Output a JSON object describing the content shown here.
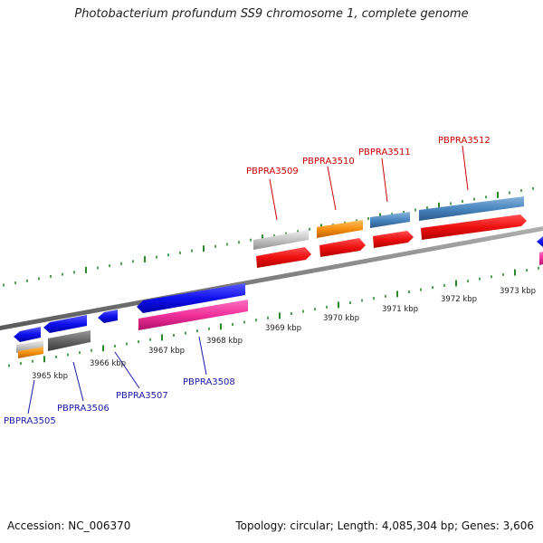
{
  "title": "Photobacterium profundum SS9 chromosome 1, complete genome",
  "footer": {
    "accession": "Accession: NC_006370",
    "summary": "Topology: circular; Length: 4,085,304 bp; Genes: 3,606"
  },
  "colors": {
    "backbone": "#8a8a8a",
    "ticks": "#2a8a2a",
    "label_top": "#cc0000",
    "label_bottom": "#1a1aaa"
  },
  "kbp_labels": [
    "3965 kbp",
    "3966 kbp",
    "3967 kbp",
    "3968 kbp",
    "3969 kbp",
    "3970 kbp",
    "3971 kbp",
    "3972 kbp",
    "3973 kbp"
  ],
  "gene_labels_top": [
    "PBPRA3509",
    "PBPRA3510",
    "PBPRA3511",
    "PBPRA3512"
  ],
  "gene_labels_bottom": [
    "PBPRA3505",
    "PBPRA3506",
    "PBPRA3507",
    "PBPRA3508"
  ]
}
